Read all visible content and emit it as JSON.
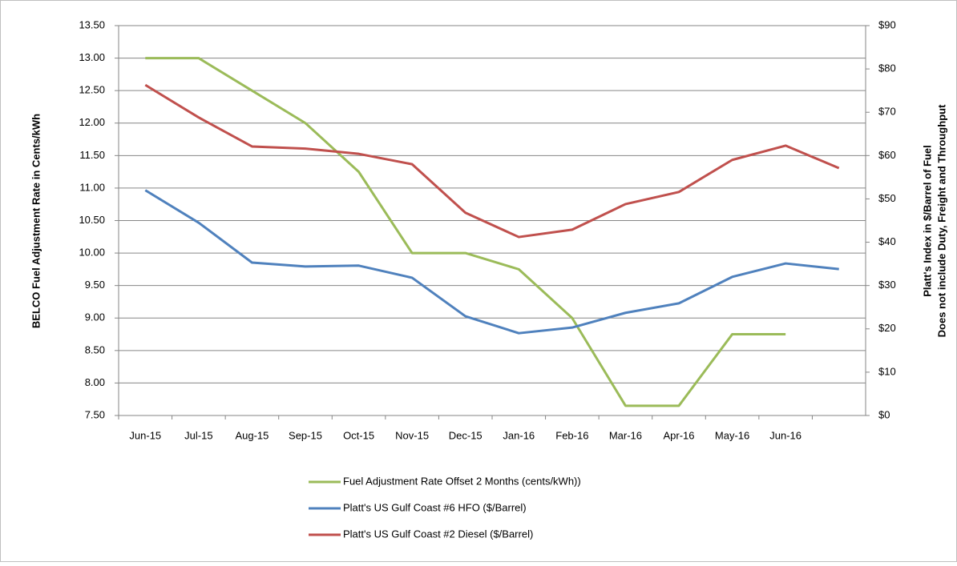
{
  "chart_data": {
    "type": "line",
    "ylabel": "BELCO Fuel Adjustment Rate in Cents/kWh",
    "y2label": [
      "Platt's Index in $/Barrel of Fuel",
      "Does not include Duty, Freight and Throughput"
    ],
    "categories": [
      "Jun-15",
      "Jul-15",
      "Aug-15",
      "Sep-15",
      "Oct-15",
      "Nov-15",
      "Dec-15",
      "Jan-16",
      "Feb-16",
      "Mar-16",
      "Apr-16",
      "May-16",
      "Jun-16",
      null
    ],
    "ylim": [
      7.5,
      13.5
    ],
    "yticks": [
      {
        "value": 7.5,
        "label": "7.50"
      },
      {
        "value": 8,
        "label": "8.00"
      },
      {
        "value": 8.5,
        "label": "8.50"
      },
      {
        "value": 9,
        "label": "9.00"
      },
      {
        "value": 9.5,
        "label": "9.50"
      },
      {
        "value": 10,
        "label": "10.00"
      },
      {
        "value": 10.5,
        "label": "10.50"
      },
      {
        "value": 11,
        "label": "11.00"
      },
      {
        "value": 11.5,
        "label": "11.50"
      },
      {
        "value": 12,
        "label": "12.00"
      },
      {
        "value": 12.5,
        "label": "12.50"
      },
      {
        "value": 13,
        "label": "13.00"
      },
      {
        "value": 13.5,
        "label": "13.50"
      }
    ],
    "y2lim": [
      0,
      90
    ],
    "y2ticks": [
      {
        "value": 0,
        "label": "$0"
      },
      {
        "value": 10,
        "label": "$10"
      },
      {
        "value": 20,
        "label": "$20"
      },
      {
        "value": 30,
        "label": "$30"
      },
      {
        "value": 40,
        "label": "$40"
      },
      {
        "value": 50,
        "label": "$50"
      },
      {
        "value": 60,
        "label": "$60"
      },
      {
        "value": 70,
        "label": "$70"
      },
      {
        "value": 80,
        "label": "$80"
      },
      {
        "value": 90,
        "label": "$90"
      }
    ],
    "grid": true,
    "legend": "bottom",
    "series": [
      {
        "name": "Fuel Adjustment Rate  Offset 2 Months (cents/kWh))",
        "color": "#9bbb59",
        "values": [
          13.0,
          13.0,
          12.5,
          12.0,
          11.25,
          10.0,
          10.0,
          9.75,
          9.0,
          7.65,
          7.65,
          8.75,
          8.75,
          null
        ]
      },
      {
        "name": "Platt's US Gulf Coast #6 HFO ($/Barrel)",
        "color": "#4f81bd",
        "axis": "y2",
        "values": [
          52.0,
          44.5,
          35.3,
          34.4,
          34.6,
          31.8,
          22.9,
          19.0,
          20.3,
          23.7,
          25.9,
          32.0,
          35.1,
          33.8
        ]
      },
      {
        "name": "Platt's US Gulf Coast #2 Diesel ($/Barrel)",
        "color": "#c0504d",
        "axis": "y2",
        "values": [
          76.3,
          68.8,
          62.1,
          61.6,
          60.4,
          58.0,
          46.8,
          41.2,
          42.9,
          48.8,
          51.6,
          59.0,
          62.3,
          57.1
        ]
      }
    ]
  }
}
